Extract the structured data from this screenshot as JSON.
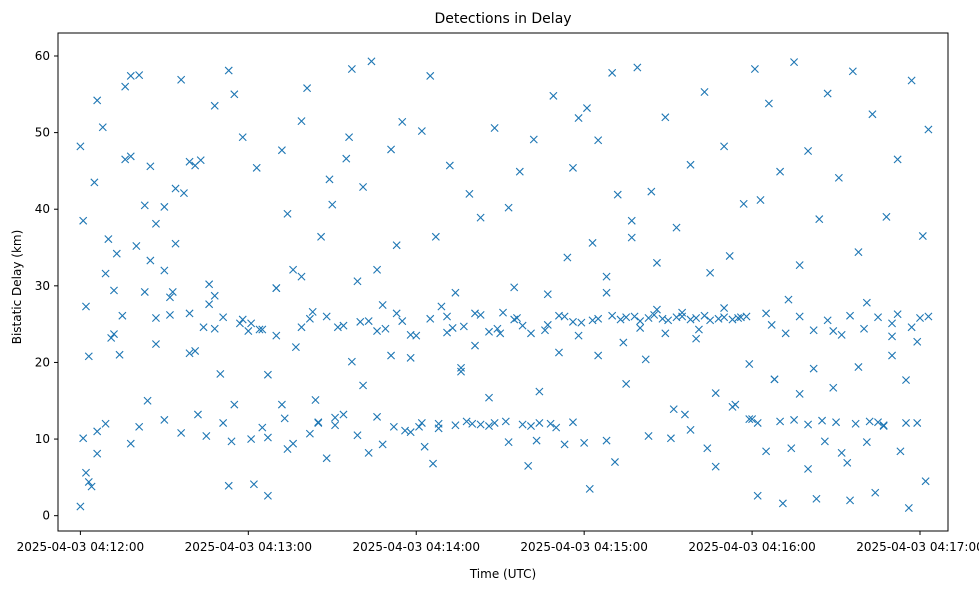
{
  "chart_data": {
    "type": "scatter",
    "title": "Detections in Delay",
    "xlabel": "Time (UTC)",
    "ylabel": "Bistatic Delay (km)",
    "x_range": [
      "2025-04-03 04:11:52",
      "2025-04-03 04:17:10"
    ],
    "ylim": [
      -2,
      63
    ],
    "x_ticks": [
      "2025-04-03 04:12:00",
      "2025-04-03 04:13:00",
      "2025-04-03 04:14:00",
      "2025-04-03 04:15:00",
      "2025-04-03 04:16:00",
      "2025-04-03 04:17:00"
    ],
    "y_ticks": [
      0,
      10,
      20,
      30,
      40,
      50,
      60
    ],
    "marker": "x",
    "color": "#1f77b4",
    "grid": false,
    "series": [
      {
        "x": [
          "2025-04-03 04:12:00",
          "2025-04-03 04:12:01",
          "2025-04-03 04:12:02",
          "2025-04-03 04:12:03",
          "2025-04-03 04:12:05",
          "2025-04-03 04:12:06",
          "2025-04-03 04:12:08",
          "2025-04-03 04:12:10",
          "2025-04-03 04:12:12",
          "2025-04-03 04:12:14",
          "2025-04-03 04:12:16",
          "2025-04-03 04:12:18",
          "2025-04-03 04:12:21",
          "2025-04-03 04:12:23",
          "2025-04-03 04:12:25",
          "2025-04-03 04:12:27",
          "2025-04-03 04:12:30",
          "2025-04-03 04:12:32",
          "2025-04-03 04:12:34",
          "2025-04-03 04:12:36",
          "2025-04-03 04:12:39",
          "2025-04-03 04:12:41",
          "2025-04-03 04:12:43",
          "2025-04-03 04:12:46",
          "2025-04-03 04:12:48",
          "2025-04-03 04:12:50",
          "2025-04-03 04:12:53",
          "2025-04-03 04:12:55",
          "2025-04-03 04:12:58",
          "2025-04-03 04:12:00",
          "2025-04-03 04:12:02",
          "2025-04-03 04:12:04",
          "2025-04-03 04:12:06",
          "2025-04-03 04:12:09",
          "2025-04-03 04:12:11",
          "2025-04-03 04:12:13",
          "2025-04-03 04:12:16",
          "2025-04-03 04:12:18",
          "2025-04-03 04:12:20",
          "2025-04-03 04:12:23",
          "2025-04-03 04:12:25",
          "2025-04-03 04:12:27",
          "2025-04-03 04:12:30",
          "2025-04-03 04:12:32",
          "2025-04-03 04:12:34",
          "2025-04-03 04:12:37",
          "2025-04-03 04:12:39",
          "2025-04-03 04:12:41",
          "2025-04-03 04:12:44",
          "2025-04-03 04:12:46",
          "2025-04-03 04:12:48",
          "2025-04-03 04:12:51",
          "2025-04-03 04:12:53",
          "2025-04-03 04:12:55",
          "2025-04-03 04:12:58",
          "2025-04-03 04:12:01",
          "2025-04-03 04:12:03",
          "2025-04-03 04:12:06",
          "2025-04-03 04:12:09",
          "2025-04-03 04:12:12",
          "2025-04-03 04:12:15",
          "2025-04-03 04:12:18",
          "2025-04-03 04:12:21",
          "2025-04-03 04:12:24",
          "2025-04-03 04:12:27",
          "2025-04-03 04:12:30",
          "2025-04-03 04:12:33",
          "2025-04-03 04:12:36",
          "2025-04-03 04:12:39",
          "2025-04-03 04:12:42",
          "2025-04-03 04:12:45",
          "2025-04-03 04:12:48",
          "2025-04-03 04:12:51",
          "2025-04-03 04:12:54",
          "2025-04-03 04:12:57",
          "2025-04-03 04:13:01",
          "2025-04-03 04:13:03",
          "2025-04-03 04:13:05",
          "2025-04-03 04:13:07",
          "2025-04-03 04:13:10",
          "2025-04-03 04:13:12",
          "2025-04-03 04:13:14",
          "2025-04-03 04:13:16",
          "2025-04-03 04:13:19",
          "2025-04-03 04:13:21",
          "2025-04-03 04:13:23",
          "2025-04-03 04:13:25",
          "2025-04-03 04:13:28",
          "2025-04-03 04:13:30",
          "2025-04-03 04:13:32",
          "2025-04-03 04:13:35",
          "2025-04-03 04:13:37",
          "2025-04-03 04:13:39",
          "2025-04-03 04:13:41",
          "2025-04-03 04:13:44",
          "2025-04-03 04:13:46",
          "2025-04-03 04:13:48",
          "2025-04-03 04:13:51",
          "2025-04-03 04:13:53",
          "2025-04-03 04:13:55",
          "2025-04-03 04:13:58",
          "2025-04-03 04:13:00",
          "2025-04-03 04:13:02",
          "2025-04-03 04:13:05",
          "2025-04-03 04:13:07",
          "2025-04-03 04:13:10",
          "2025-04-03 04:13:12",
          "2025-04-03 04:13:14",
          "2025-04-03 04:13:17",
          "2025-04-03 04:13:19",
          "2025-04-03 04:13:22",
          "2025-04-03 04:13:24",
          "2025-04-03 04:13:26",
          "2025-04-03 04:13:29",
          "2025-04-03 04:13:31",
          "2025-04-03 04:13:34",
          "2025-04-03 04:13:36",
          "2025-04-03 04:13:39",
          "2025-04-03 04:13:41",
          "2025-04-03 04:13:43",
          "2025-04-03 04:13:46",
          "2025-04-03 04:13:48",
          "2025-04-03 04:13:51",
          "2025-04-03 04:13:53",
          "2025-04-03 04:13:56",
          "2025-04-03 04:13:58",
          "2025-04-03 04:13:01",
          "2025-04-03 04:13:04",
          "2025-04-03 04:13:07",
          "2025-04-03 04:13:10",
          "2025-04-03 04:13:13",
          "2025-04-03 04:13:16",
          "2025-04-03 04:13:19",
          "2025-04-03 04:13:22",
          "2025-04-03 04:13:25",
          "2025-04-03 04:13:28",
          "2025-04-03 04:13:31",
          "2025-04-03 04:13:34",
          "2025-04-03 04:13:37",
          "2025-04-03 04:13:40",
          "2025-04-03 04:13:43",
          "2025-04-03 04:13:46",
          "2025-04-03 04:13:49",
          "2025-04-03 04:13:52",
          "2025-04-03 04:13:55",
          "2025-04-03 04:13:58",
          "2025-04-03 04:14:00",
          "2025-04-03 04:14:02",
          "2025-04-03 04:14:05",
          "2025-04-03 04:14:07",
          "2025-04-03 04:14:09",
          "2025-04-03 04:14:12",
          "2025-04-03 04:14:14",
          "2025-04-03 04:14:16",
          "2025-04-03 04:14:19",
          "2025-04-03 04:14:21",
          "2025-04-03 04:14:23",
          "2025-04-03 04:14:26",
          "2025-04-03 04:14:28",
          "2025-04-03 04:14:30",
          "2025-04-03 04:14:33",
          "2025-04-03 04:14:35",
          "2025-04-03 04:14:37",
          "2025-04-03 04:14:40",
          "2025-04-03 04:14:42",
          "2025-04-03 04:14:44",
          "2025-04-03 04:14:47",
          "2025-04-03 04:14:49",
          "2025-04-03 04:14:51",
          "2025-04-03 04:14:54",
          "2025-04-03 04:14:56",
          "2025-04-03 04:14:58",
          "2025-04-03 04:14:01",
          "2025-04-03 04:14:03",
          "2025-04-03 04:14:06",
          "2025-04-03 04:14:08",
          "2025-04-03 04:14:11",
          "2025-04-03 04:14:13",
          "2025-04-03 04:14:16",
          "2025-04-03 04:14:18",
          "2025-04-03 04:14:21",
          "2025-04-03 04:14:23",
          "2025-04-03 04:14:26",
          "2025-04-03 04:14:28",
          "2025-04-03 04:14:31",
          "2025-04-03 04:14:33",
          "2025-04-03 04:14:36",
          "2025-04-03 04:14:38",
          "2025-04-03 04:14:41",
          "2025-04-03 04:14:43",
          "2025-04-03 04:14:46",
          "2025-04-03 04:14:48",
          "2025-04-03 04:14:51",
          "2025-04-03 04:14:53",
          "2025-04-03 04:14:56",
          "2025-04-03 04:14:58",
          "2025-04-03 04:14:02",
          "2025-04-03 04:14:05",
          "2025-04-03 04:14:08",
          "2025-04-03 04:14:11",
          "2025-04-03 04:14:14",
          "2025-04-03 04:14:17",
          "2025-04-03 04:14:20",
          "2025-04-03 04:14:23",
          "2025-04-03 04:14:26",
          "2025-04-03 04:14:29",
          "2025-04-03 04:14:32",
          "2025-04-03 04:14:35",
          "2025-04-03 04:14:38",
          "2025-04-03 04:14:41",
          "2025-04-03 04:14:44",
          "2025-04-03 04:14:47",
          "2025-04-03 04:14:50",
          "2025-04-03 04:14:53",
          "2025-04-03 04:14:56",
          "2025-04-03 04:14:59",
          "2025-04-03 04:15:01",
          "2025-04-03 04:15:03",
          "2025-04-03 04:15:05",
          "2025-04-03 04:15:08",
          "2025-04-03 04:15:10",
          "2025-04-03 04:15:12",
          "2025-04-03 04:15:15",
          "2025-04-03 04:15:17",
          "2025-04-03 04:15:19",
          "2025-04-03 04:15:22",
          "2025-04-03 04:15:24",
          "2025-04-03 04:15:26",
          "2025-04-03 04:15:29",
          "2025-04-03 04:15:31",
          "2025-04-03 04:15:33",
          "2025-04-03 04:15:36",
          "2025-04-03 04:15:38",
          "2025-04-03 04:15:40",
          "2025-04-03 04:15:43",
          "2025-04-03 04:15:45",
          "2025-04-03 04:15:47",
          "2025-04-03 04:15:50",
          "2025-04-03 04:15:52",
          "2025-04-03 04:15:54",
          "2025-04-03 04:15:57",
          "2025-04-03 04:15:59",
          "2025-04-03 04:15:00",
          "2025-04-03 04:15:03",
          "2025-04-03 04:15:05",
          "2025-04-03 04:15:08",
          "2025-04-03 04:15:10",
          "2025-04-03 04:15:13",
          "2025-04-03 04:15:15",
          "2025-04-03 04:15:18",
          "2025-04-03 04:15:20",
          "2025-04-03 04:15:23",
          "2025-04-03 04:15:25",
          "2025-04-03 04:15:28",
          "2025-04-03 04:15:30",
          "2025-04-03 04:15:33",
          "2025-04-03 04:15:35",
          "2025-04-03 04:15:38",
          "2025-04-03 04:15:40",
          "2025-04-03 04:15:43",
          "2025-04-03 04:15:45",
          "2025-04-03 04:15:48",
          "2025-04-03 04:15:50",
          "2025-04-03 04:15:53",
          "2025-04-03 04:15:55",
          "2025-04-03 04:15:58",
          "2025-04-03 04:15:02",
          "2025-04-03 04:15:05",
          "2025-04-03 04:15:08",
          "2025-04-03 04:15:11",
          "2025-04-03 04:15:14",
          "2025-04-03 04:15:17",
          "2025-04-03 04:15:20",
          "2025-04-03 04:15:23",
          "2025-04-03 04:15:26",
          "2025-04-03 04:15:29",
          "2025-04-03 04:15:32",
          "2025-04-03 04:15:35",
          "2025-04-03 04:15:38",
          "2025-04-03 04:15:41",
          "2025-04-03 04:15:44",
          "2025-04-03 04:15:47",
          "2025-04-03 04:15:50",
          "2025-04-03 04:15:53",
          "2025-04-03 04:15:56",
          "2025-04-03 04:15:59",
          "2025-04-03 04:16:01",
          "2025-04-03 04:16:03",
          "2025-04-03 04:16:06",
          "2025-04-03 04:16:08",
          "2025-04-03 04:16:10",
          "2025-04-03 04:16:13",
          "2025-04-03 04:16:15",
          "2025-04-03 04:16:17",
          "2025-04-03 04:16:20",
          "2025-04-03 04:16:22",
          "2025-04-03 04:16:24",
          "2025-04-03 04:16:27",
          "2025-04-03 04:16:29",
          "2025-04-03 04:16:31",
          "2025-04-03 04:16:34",
          "2025-04-03 04:16:36",
          "2025-04-03 04:16:38",
          "2025-04-03 04:16:41",
          "2025-04-03 04:16:43",
          "2025-04-03 04:16:45",
          "2025-04-03 04:16:48",
          "2025-04-03 04:16:50",
          "2025-04-03 04:16:52",
          "2025-04-03 04:16:55",
          "2025-04-03 04:16:57",
          "2025-04-03 04:16:59",
          "2025-04-03 04:17:01",
          "2025-04-03 04:17:03",
          "2025-04-03 04:16:00",
          "2025-04-03 04:16:02",
          "2025-04-03 04:16:05",
          "2025-04-03 04:16:07",
          "2025-04-03 04:16:10",
          "2025-04-03 04:16:12",
          "2025-04-03 04:16:15",
          "2025-04-03 04:16:17",
          "2025-04-03 04:16:20",
          "2025-04-03 04:16:22",
          "2025-04-03 04:16:25",
          "2025-04-03 04:16:27",
          "2025-04-03 04:16:30",
          "2025-04-03 04:16:32",
          "2025-04-03 04:16:35",
          "2025-04-03 04:16:37",
          "2025-04-03 04:16:40",
          "2025-04-03 04:16:42",
          "2025-04-03 04:16:45",
          "2025-04-03 04:16:47",
          "2025-04-03 04:16:50",
          "2025-04-03 04:16:52",
          "2025-04-03 04:16:55",
          "2025-04-03 04:16:57",
          "2025-04-03 04:17:00",
          "2025-04-03 04:17:03",
          "2025-04-03 04:16:02",
          "2025-04-03 04:16:05",
          "2025-04-03 04:16:08",
          "2025-04-03 04:16:11",
          "2025-04-03 04:16:14",
          "2025-04-03 04:16:17",
          "2025-04-03 04:16:20",
          "2025-04-03 04:16:23",
          "2025-04-03 04:16:26",
          "2025-04-03 04:16:29",
          "2025-04-03 04:16:32",
          "2025-04-03 04:16:35",
          "2025-04-03 04:16:38",
          "2025-04-03 04:16:41",
          "2025-04-03 04:16:44",
          "2025-04-03 04:16:47",
          "2025-04-03 04:16:50",
          "2025-04-03 04:16:53",
          "2025-04-03 04:16:56",
          "2025-04-03 04:16:59",
          "2025-04-03 04:17:02"
        ],
        "y": [
          48.2,
          38.5,
          27.3,
          20.8,
          43.5,
          54.2,
          50.7,
          36.1,
          29.4,
          21.0,
          56.0,
          46.9,
          57.5,
          40.5,
          45.6,
          38.1,
          32.0,
          28.5,
          42.7,
          56.9,
          21.2,
          45.7,
          46.4,
          27.6,
          53.5,
          18.5,
          58.1,
          55.0,
          49.4,
          1.2,
          5.6,
          3.8,
          8.1,
          31.6,
          23.2,
          34.2,
          46.5,
          57.4,
          35.2,
          29.2,
          33.3,
          22.4,
          40.3,
          26.2,
          35.5,
          42.1,
          46.2,
          21.5,
          24.6,
          30.2,
          24.4,
          12.1,
          3.9,
          14.5,
          25.6,
          10.1,
          4.4,
          11.0,
          12.0,
          23.7,
          26.1,
          9.4,
          11.6,
          15.0,
          25.8,
          12.5,
          29.2,
          10.8,
          26.4,
          13.2,
          10.4,
          28.7,
          25.9,
          9.7,
          25.1,
          25.1,
          45.4,
          24.3,
          2.6,
          29.7,
          47.7,
          39.4,
          32.1,
          51.5,
          55.8,
          26.6,
          12.2,
          7.5,
          40.6,
          24.6,
          46.6,
          58.3,
          10.5,
          42.9,
          59.3,
          24.1,
          9.3,
          47.8,
          26.4,
          51.4,
          10.9,
          24.1,
          4.1,
          11.5,
          18.4,
          29.7,
          14.5,
          8.7,
          22.0,
          31.2,
          25.7,
          15.1,
          36.4,
          43.9,
          12.8,
          24.8,
          49.4,
          30.6,
          17.0,
          25.4,
          32.1,
          27.5,
          20.9,
          35.3,
          11.1,
          20.6,
          10.0,
          24.3,
          10.2,
          23.5,
          12.7,
          9.4,
          24.6,
          10.7,
          12.1,
          26.0,
          11.8,
          13.2,
          20.1,
          25.3,
          8.2,
          12.9,
          24.4,
          11.6,
          25.4,
          23.6,
          23.5,
          50.2,
          57.4,
          36.4,
          27.3,
          45.7,
          29.1,
          19.3,
          42.0,
          22.2,
          38.9,
          15.4,
          50.6,
          23.8,
          40.2,
          29.8,
          44.9,
          6.5,
          49.1,
          16.2,
          28.9,
          54.8,
          21.3,
          33.7,
          45.4,
          51.9,
          11.6,
          9.0,
          6.8,
          12.0,
          26.0,
          24.5,
          18.8,
          12.3,
          26.4,
          11.9,
          24.0,
          12.1,
          26.5,
          9.6,
          25.8,
          24.8,
          11.7,
          9.8,
          24.2,
          12.0,
          26.1,
          9.3,
          25.3,
          23.5,
          12.1,
          25.7,
          11.4,
          23.9,
          11.8,
          24.7,
          12.0,
          26.2,
          11.7,
          24.4,
          12.3,
          25.6,
          11.9,
          23.8,
          12.1,
          24.9,
          11.5,
          26.0,
          12.2,
          25.2,
          53.2,
          35.6,
          49.0,
          29.1,
          57.8,
          41.9,
          17.2,
          38.5,
          58.5,
          20.4,
          42.3,
          26.9,
          52.0,
          10.1,
          37.6,
          13.2,
          45.8,
          23.1,
          55.3,
          31.7,
          6.4,
          48.2,
          33.9,
          14.5,
          40.7,
          19.8,
          9.5,
          25.5,
          25.7,
          9.8,
          26.1,
          25.6,
          25.9,
          26.0,
          25.4,
          25.8,
          26.2,
          25.7,
          25.5,
          25.9,
          26.0,
          25.6,
          25.8,
          26.1,
          25.5,
          25.7,
          25.9,
          25.6,
          25.8,
          26.0,
          3.5,
          20.9,
          31.2,
          7.0,
          22.6,
          36.3,
          24.5,
          10.4,
          33.0,
          23.8,
          13.9,
          26.5,
          11.2,
          24.3,
          8.8,
          16.0,
          27.1,
          14.2,
          25.9,
          12.6,
          58.3,
          41.2,
          53.8,
          17.8,
          44.9,
          28.2,
          59.2,
          32.7,
          47.6,
          19.2,
          38.7,
          55.1,
          24.1,
          44.1,
          6.9,
          58.0,
          34.4,
          27.8,
          52.4,
          12.2,
          39.0,
          25.1,
          46.5,
          17.7,
          56.8,
          22.7,
          36.5,
          50.4,
          12.6,
          12.1,
          26.4,
          24.9,
          12.3,
          23.8,
          12.5,
          26.0,
          11.9,
          24.2,
          12.4,
          25.5,
          12.2,
          23.6,
          26.1,
          12.0,
          24.4,
          12.3,
          25.9,
          11.8,
          23.4,
          26.3,
          12.1,
          24.6,
          25.8,
          26.0,
          2.6,
          8.4,
          17.8,
          1.6,
          8.8,
          15.9,
          6.1,
          2.2,
          9.7,
          16.7,
          8.2,
          2.0,
          19.4,
          9.6,
          3.0,
          11.7,
          20.9,
          8.4,
          1.0,
          12.1,
          4.5
        ]
      }
    ]
  }
}
